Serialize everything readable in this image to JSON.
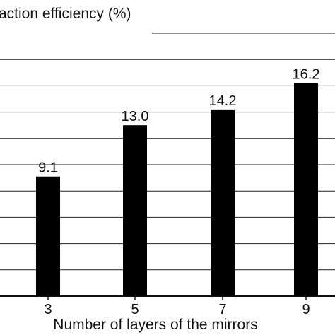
{
  "chart_data": {
    "type": "bar",
    "title": "action efficiency (%)",
    "xlabel": "Number of layers of the mirrors",
    "ylabel": "",
    "categories": [
      "3",
      "5",
      "7",
      "9"
    ],
    "values": [
      9.1,
      13.0,
      14.2,
      16.2
    ],
    "value_labels": [
      "9.1",
      "13.0",
      "14.2",
      "16.2"
    ],
    "ylim": [
      0,
      20
    ],
    "grid": true,
    "legend": "none",
    "bar_color": "#000000",
    "grid_color": "#222222"
  }
}
